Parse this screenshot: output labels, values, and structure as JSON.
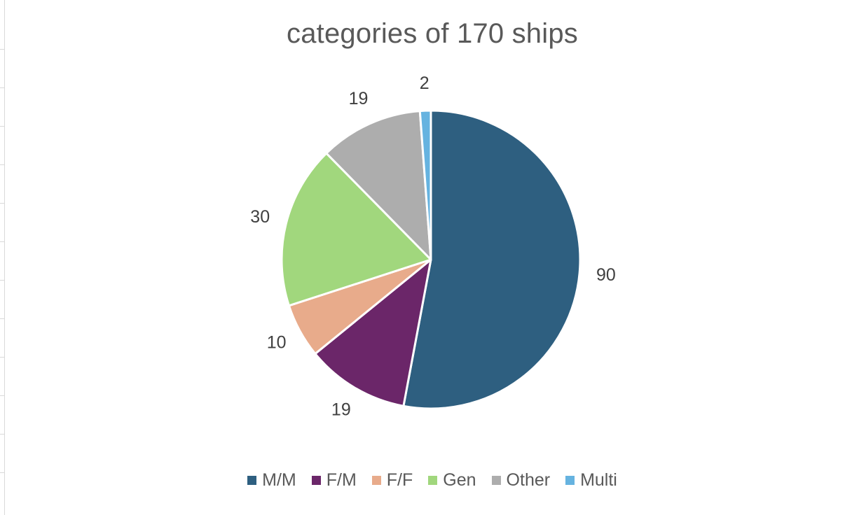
{
  "chart_data": {
    "type": "pie",
    "title": "categories of 170 ships",
    "categories": [
      "M/M",
      "F/M",
      "F/F",
      "Gen",
      "Other",
      "Multi"
    ],
    "values": [
      90,
      19,
      10,
      30,
      19,
      2
    ],
    "colors": [
      "#2e5f80",
      "#6b2669",
      "#e8ab8b",
      "#a1d77d",
      "#adadad",
      "#66b3e0"
    ],
    "data_labels": [
      "90",
      "19",
      "10",
      "30",
      "19",
      "2"
    ],
    "legend_position": "bottom",
    "start_angle_deg": 0,
    "direction": "clockwise"
  }
}
